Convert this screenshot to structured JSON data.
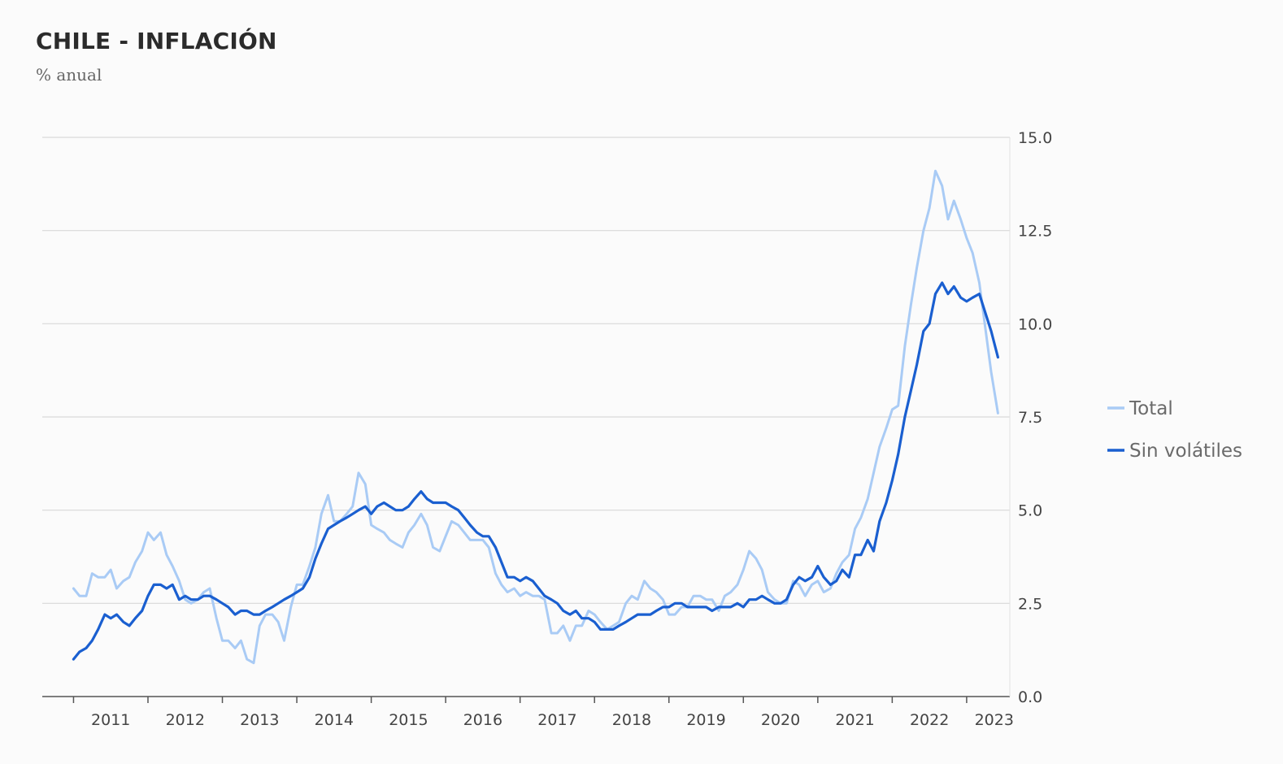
{
  "header": {
    "title": "CHILE - INFLACIÓN",
    "subtitle": "% anual"
  },
  "colors": {
    "background": "#fbfbfb",
    "grid": "#d9d9d9",
    "axis_text": "#444444",
    "legend_text": "#6a6a6a"
  },
  "chart_data": {
    "type": "line",
    "title": "CHILE - INFLACIÓN",
    "subtitle": "% anual",
    "ylabel": "% anual",
    "ylim": [
      0,
      15
    ],
    "y_ticks": [
      "0.0",
      "2.5",
      "5.0",
      "7.5",
      "10.0",
      "12.5",
      "15.0"
    ],
    "x_ticks": [
      "2011",
      "2012",
      "2013",
      "2014",
      "2015",
      "2016",
      "2017",
      "2018",
      "2019",
      "2020",
      "2021",
      "2022",
      "2023"
    ],
    "grid": true,
    "legend_position": "right",
    "series": [
      {
        "name": "Total",
        "color": "#a9cbf5",
        "points": [
          [
            2011.0,
            2.9
          ],
          [
            2011.08,
            2.7
          ],
          [
            2011.17,
            2.7
          ],
          [
            2011.25,
            3.3
          ],
          [
            2011.33,
            3.2
          ],
          [
            2011.42,
            3.2
          ],
          [
            2011.5,
            3.4
          ],
          [
            2011.58,
            2.9
          ],
          [
            2011.67,
            3.1
          ],
          [
            2011.75,
            3.2
          ],
          [
            2011.83,
            3.6
          ],
          [
            2011.92,
            3.9
          ],
          [
            2012.0,
            4.4
          ],
          [
            2012.08,
            4.2
          ],
          [
            2012.17,
            4.4
          ],
          [
            2012.25,
            3.8
          ],
          [
            2012.33,
            3.5
          ],
          [
            2012.42,
            3.1
          ],
          [
            2012.5,
            2.6
          ],
          [
            2012.58,
            2.5
          ],
          [
            2012.67,
            2.6
          ],
          [
            2012.75,
            2.8
          ],
          [
            2012.83,
            2.9
          ],
          [
            2012.92,
            2.1
          ],
          [
            2013.0,
            1.5
          ],
          [
            2013.08,
            1.5
          ],
          [
            2013.17,
            1.3
          ],
          [
            2013.25,
            1.5
          ],
          [
            2013.33,
            1.0
          ],
          [
            2013.42,
            0.9
          ],
          [
            2013.5,
            1.9
          ],
          [
            2013.58,
            2.2
          ],
          [
            2013.67,
            2.2
          ],
          [
            2013.75,
            2.0
          ],
          [
            2013.83,
            1.5
          ],
          [
            2013.92,
            2.4
          ],
          [
            2014.0,
            3.0
          ],
          [
            2014.08,
            3.0
          ],
          [
            2014.17,
            3.5
          ],
          [
            2014.25,
            4.0
          ],
          [
            2014.33,
            4.9
          ],
          [
            2014.42,
            5.4
          ],
          [
            2014.5,
            4.7
          ],
          [
            2014.58,
            4.7
          ],
          [
            2014.67,
            4.9
          ],
          [
            2014.75,
            5.1
          ],
          [
            2014.83,
            6.0
          ],
          [
            2014.92,
            5.7
          ],
          [
            2015.0,
            4.6
          ],
          [
            2015.08,
            4.5
          ],
          [
            2015.17,
            4.4
          ],
          [
            2015.25,
            4.2
          ],
          [
            2015.33,
            4.1
          ],
          [
            2015.42,
            4.0
          ],
          [
            2015.5,
            4.4
          ],
          [
            2015.58,
            4.6
          ],
          [
            2015.67,
            4.9
          ],
          [
            2015.75,
            4.6
          ],
          [
            2015.83,
            4.0
          ],
          [
            2015.92,
            3.9
          ],
          [
            2016.0,
            4.3
          ],
          [
            2016.08,
            4.7
          ],
          [
            2016.17,
            4.6
          ],
          [
            2016.25,
            4.4
          ],
          [
            2016.33,
            4.2
          ],
          [
            2016.42,
            4.2
          ],
          [
            2016.5,
            4.2
          ],
          [
            2016.58,
            4.0
          ],
          [
            2016.67,
            3.3
          ],
          [
            2016.75,
            3.0
          ],
          [
            2016.83,
            2.8
          ],
          [
            2016.92,
            2.9
          ],
          [
            2017.0,
            2.7
          ],
          [
            2017.08,
            2.8
          ],
          [
            2017.17,
            2.7
          ],
          [
            2017.25,
            2.7
          ],
          [
            2017.33,
            2.6
          ],
          [
            2017.42,
            1.7
          ],
          [
            2017.5,
            1.7
          ],
          [
            2017.58,
            1.9
          ],
          [
            2017.67,
            1.5
          ],
          [
            2017.75,
            1.9
          ],
          [
            2017.83,
            1.9
          ],
          [
            2017.92,
            2.3
          ],
          [
            2018.0,
            2.2
          ],
          [
            2018.08,
            2.0
          ],
          [
            2018.17,
            1.8
          ],
          [
            2018.25,
            1.9
          ],
          [
            2018.33,
            2.0
          ],
          [
            2018.42,
            2.5
          ],
          [
            2018.5,
            2.7
          ],
          [
            2018.58,
            2.6
          ],
          [
            2018.67,
            3.1
          ],
          [
            2018.75,
            2.9
          ],
          [
            2018.83,
            2.8
          ],
          [
            2018.92,
            2.6
          ],
          [
            2019.0,
            2.2
          ],
          [
            2019.08,
            2.2
          ],
          [
            2019.17,
            2.4
          ],
          [
            2019.25,
            2.4
          ],
          [
            2019.33,
            2.7
          ],
          [
            2019.42,
            2.7
          ],
          [
            2019.5,
            2.6
          ],
          [
            2019.58,
            2.6
          ],
          [
            2019.67,
            2.3
          ],
          [
            2019.75,
            2.7
          ],
          [
            2019.83,
            2.8
          ],
          [
            2019.92,
            3.0
          ],
          [
            2020.0,
            3.4
          ],
          [
            2020.08,
            3.9
          ],
          [
            2020.17,
            3.7
          ],
          [
            2020.25,
            3.4
          ],
          [
            2020.33,
            2.8
          ],
          [
            2020.42,
            2.6
          ],
          [
            2020.5,
            2.5
          ],
          [
            2020.58,
            2.5
          ],
          [
            2020.67,
            3.1
          ],
          [
            2020.75,
            3.0
          ],
          [
            2020.83,
            2.7
          ],
          [
            2020.92,
            3.0
          ],
          [
            2021.0,
            3.1
          ],
          [
            2021.08,
            2.8
          ],
          [
            2021.17,
            2.9
          ],
          [
            2021.25,
            3.3
          ],
          [
            2021.33,
            3.6
          ],
          [
            2021.42,
            3.8
          ],
          [
            2021.5,
            4.5
          ],
          [
            2021.58,
            4.8
          ],
          [
            2021.67,
            5.3
          ],
          [
            2021.75,
            6.0
          ],
          [
            2021.83,
            6.7
          ],
          [
            2021.92,
            7.2
          ],
          [
            2022.0,
            7.7
          ],
          [
            2022.08,
            7.8
          ],
          [
            2022.17,
            9.4
          ],
          [
            2022.25,
            10.5
          ],
          [
            2022.33,
            11.5
          ],
          [
            2022.42,
            12.5
          ],
          [
            2022.5,
            13.1
          ],
          [
            2022.58,
            14.1
          ],
          [
            2022.67,
            13.7
          ],
          [
            2022.75,
            12.8
          ],
          [
            2022.83,
            13.3
          ],
          [
            2022.92,
            12.8
          ],
          [
            2023.0,
            12.3
          ],
          [
            2023.08,
            11.9
          ],
          [
            2023.17,
            11.1
          ],
          [
            2023.25,
            9.9
          ],
          [
            2023.33,
            8.7
          ],
          [
            2023.42,
            7.6
          ]
        ]
      },
      {
        "name": "Sin volátiles",
        "color": "#1a5fd0",
        "points": [
          [
            2011.0,
            1.0
          ],
          [
            2011.08,
            1.2
          ],
          [
            2011.17,
            1.3
          ],
          [
            2011.25,
            1.5
          ],
          [
            2011.33,
            1.8
          ],
          [
            2011.42,
            2.2
          ],
          [
            2011.5,
            2.1
          ],
          [
            2011.58,
            2.2
          ],
          [
            2011.67,
            2.0
          ],
          [
            2011.75,
            1.9
          ],
          [
            2011.83,
            2.1
          ],
          [
            2011.92,
            2.3
          ],
          [
            2012.0,
            2.7
          ],
          [
            2012.08,
            3.0
          ],
          [
            2012.17,
            3.0
          ],
          [
            2012.25,
            2.9
          ],
          [
            2012.33,
            3.0
          ],
          [
            2012.42,
            2.6
          ],
          [
            2012.5,
            2.7
          ],
          [
            2012.58,
            2.6
          ],
          [
            2012.67,
            2.6
          ],
          [
            2012.75,
            2.7
          ],
          [
            2012.83,
            2.7
          ],
          [
            2012.92,
            2.6
          ],
          [
            2013.0,
            2.5
          ],
          [
            2013.08,
            2.4
          ],
          [
            2013.17,
            2.2
          ],
          [
            2013.25,
            2.3
          ],
          [
            2013.33,
            2.3
          ],
          [
            2013.42,
            2.2
          ],
          [
            2013.5,
            2.2
          ],
          [
            2013.58,
            2.3
          ],
          [
            2013.67,
            2.4
          ],
          [
            2013.75,
            2.5
          ],
          [
            2013.83,
            2.6
          ],
          [
            2013.92,
            2.7
          ],
          [
            2014.0,
            2.8
          ],
          [
            2014.08,
            2.9
          ],
          [
            2014.17,
            3.2
          ],
          [
            2014.25,
            3.7
          ],
          [
            2014.33,
            4.1
          ],
          [
            2014.42,
            4.5
          ],
          [
            2014.5,
            4.6
          ],
          [
            2014.58,
            4.7
          ],
          [
            2014.67,
            4.8
          ],
          [
            2014.75,
            4.9
          ],
          [
            2014.83,
            5.0
          ],
          [
            2014.92,
            5.1
          ],
          [
            2015.0,
            4.9
          ],
          [
            2015.08,
            5.1
          ],
          [
            2015.17,
            5.2
          ],
          [
            2015.25,
            5.1
          ],
          [
            2015.33,
            5.0
          ],
          [
            2015.42,
            5.0
          ],
          [
            2015.5,
            5.1
          ],
          [
            2015.58,
            5.3
          ],
          [
            2015.67,
            5.5
          ],
          [
            2015.75,
            5.3
          ],
          [
            2015.83,
            5.2
          ],
          [
            2015.92,
            5.2
          ],
          [
            2016.0,
            5.2
          ],
          [
            2016.08,
            5.1
          ],
          [
            2016.17,
            5.0
          ],
          [
            2016.25,
            4.8
          ],
          [
            2016.33,
            4.6
          ],
          [
            2016.42,
            4.4
          ],
          [
            2016.5,
            4.3
          ],
          [
            2016.58,
            4.3
          ],
          [
            2016.67,
            4.0
          ],
          [
            2016.75,
            3.6
          ],
          [
            2016.83,
            3.2
          ],
          [
            2016.92,
            3.2
          ],
          [
            2017.0,
            3.1
          ],
          [
            2017.08,
            3.2
          ],
          [
            2017.17,
            3.1
          ],
          [
            2017.25,
            2.9
          ],
          [
            2017.33,
            2.7
          ],
          [
            2017.42,
            2.6
          ],
          [
            2017.5,
            2.5
          ],
          [
            2017.58,
            2.3
          ],
          [
            2017.67,
            2.2
          ],
          [
            2017.75,
            2.3
          ],
          [
            2017.83,
            2.1
          ],
          [
            2017.92,
            2.1
          ],
          [
            2018.0,
            2.0
          ],
          [
            2018.08,
            1.8
          ],
          [
            2018.17,
            1.8
          ],
          [
            2018.25,
            1.8
          ],
          [
            2018.33,
            1.9
          ],
          [
            2018.42,
            2.0
          ],
          [
            2018.5,
            2.1
          ],
          [
            2018.58,
            2.2
          ],
          [
            2018.67,
            2.2
          ],
          [
            2018.75,
            2.2
          ],
          [
            2018.83,
            2.3
          ],
          [
            2018.92,
            2.4
          ],
          [
            2019.0,
            2.4
          ],
          [
            2019.08,
            2.5
          ],
          [
            2019.17,
            2.5
          ],
          [
            2019.25,
            2.4
          ],
          [
            2019.33,
            2.4
          ],
          [
            2019.42,
            2.4
          ],
          [
            2019.5,
            2.4
          ],
          [
            2019.58,
            2.3
          ],
          [
            2019.67,
            2.4
          ],
          [
            2019.75,
            2.4
          ],
          [
            2019.83,
            2.4
          ],
          [
            2019.92,
            2.5
          ],
          [
            2020.0,
            2.4
          ],
          [
            2020.08,
            2.6
          ],
          [
            2020.17,
            2.6
          ],
          [
            2020.25,
            2.7
          ],
          [
            2020.33,
            2.6
          ],
          [
            2020.42,
            2.5
          ],
          [
            2020.5,
            2.5
          ],
          [
            2020.58,
            2.6
          ],
          [
            2020.67,
            3.0
          ],
          [
            2020.75,
            3.2
          ],
          [
            2020.83,
            3.1
          ],
          [
            2020.92,
            3.2
          ],
          [
            2021.0,
            3.5
          ],
          [
            2021.08,
            3.2
          ],
          [
            2021.17,
            3.0
          ],
          [
            2021.25,
            3.1
          ],
          [
            2021.33,
            3.4
          ],
          [
            2021.42,
            3.2
          ],
          [
            2021.5,
            3.8
          ],
          [
            2021.58,
            3.8
          ],
          [
            2021.67,
            4.2
          ],
          [
            2021.75,
            3.9
          ],
          [
            2021.83,
            4.7
          ],
          [
            2021.92,
            5.2
          ],
          [
            2022.0,
            5.8
          ],
          [
            2022.08,
            6.5
          ],
          [
            2022.17,
            7.5
          ],
          [
            2022.25,
            8.2
          ],
          [
            2022.33,
            8.9
          ],
          [
            2022.42,
            9.8
          ],
          [
            2022.5,
            10.0
          ],
          [
            2022.58,
            10.8
          ],
          [
            2022.67,
            11.1
          ],
          [
            2022.75,
            10.8
          ],
          [
            2022.83,
            11.0
          ],
          [
            2022.92,
            10.7
          ],
          [
            2023.0,
            10.6
          ],
          [
            2023.08,
            10.7
          ],
          [
            2023.17,
            10.8
          ],
          [
            2023.25,
            10.3
          ],
          [
            2023.33,
            9.8
          ],
          [
            2023.42,
            9.1
          ]
        ]
      }
    ]
  }
}
